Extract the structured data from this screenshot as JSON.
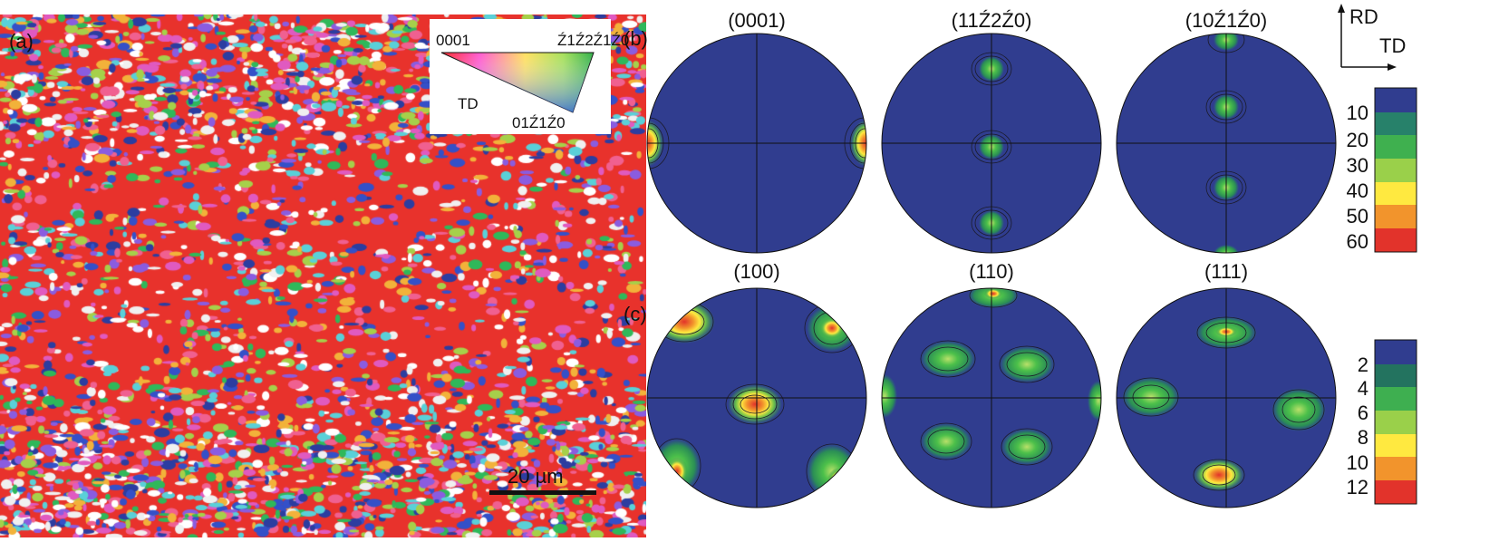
{
  "panel_a": {
    "label": "(a)",
    "legend": {
      "corner_top_left": "0001",
      "corner_top_right": "Ź1Ź2Ź1Ź0",
      "corner_bottom": "01Ź1Ź0",
      "axis_label": "TD"
    },
    "scale_bar": {
      "value": "20",
      "unit": "µm"
    },
    "colors": {
      "matrix": "#e8322c",
      "grain_palette": [
        "#2c3da0",
        "#3450c8",
        "#e05ac0",
        "#f0f0f0",
        "#5ad0d8",
        "#8a5ce0",
        "#f06090",
        "#a6d04a",
        "#2fb85a",
        "#f2b23a",
        "#ffffff"
      ]
    }
  },
  "panel_b": {
    "label": "(b)",
    "poles": [
      "(0001)",
      "(11Ź2Ź0)",
      "(10Ź1Ź0)"
    ]
  },
  "panel_c": {
    "label": "(c)",
    "poles": [
      "(100)",
      "(110)",
      "(111)"
    ]
  },
  "axes_indicator": {
    "rd": "RD",
    "td": "TD"
  },
  "colorbar_b": {
    "ticks": [
      "10",
      "20",
      "30",
      "40",
      "50",
      "60"
    ],
    "colors": [
      "#303d8f",
      "#27816a",
      "#3fb04f",
      "#9ad04a",
      "#ffe940",
      "#f2942c",
      "#e2332b"
    ]
  },
  "colorbar_c": {
    "ticks": [
      "2",
      "4",
      "6",
      "8",
      "10",
      "12"
    ],
    "colors": [
      "#303d8f",
      "#23735f",
      "#3eaf50",
      "#9ad04a",
      "#ffe940",
      "#f2942c",
      "#e2332b"
    ]
  }
}
